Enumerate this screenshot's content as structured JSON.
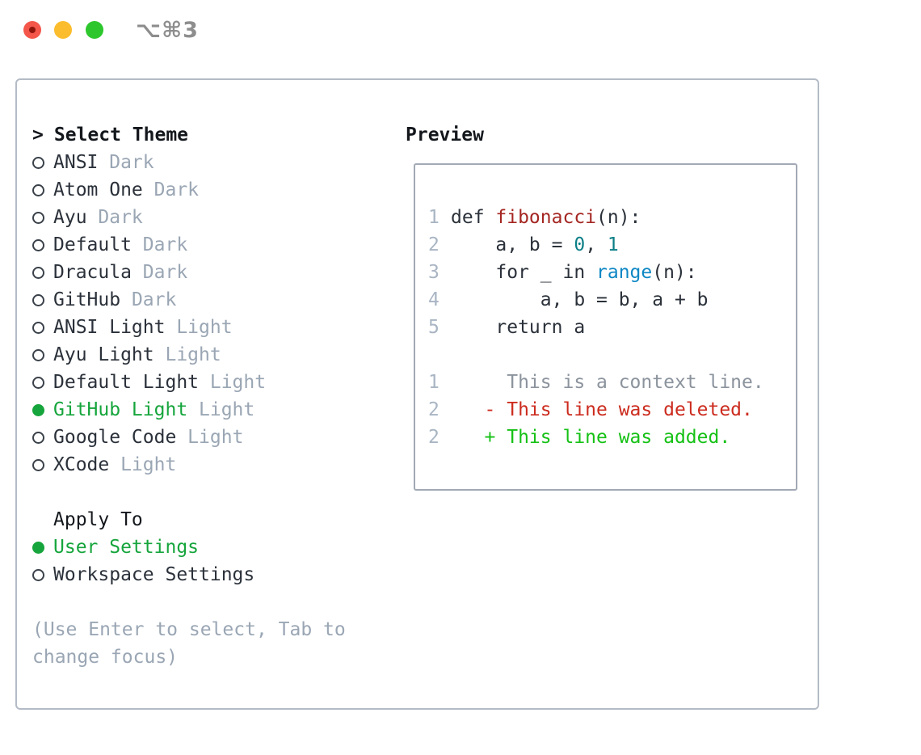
{
  "window": {
    "title_shortcut": "⌥⌘3",
    "traffic_lights": [
      "close",
      "minimize",
      "zoom"
    ]
  },
  "theme_picker": {
    "prompt": ">",
    "title": "Select Theme",
    "items": [
      {
        "name": "ANSI",
        "variant": "Dark",
        "selected": false
      },
      {
        "name": "Atom One",
        "variant": "Dark",
        "selected": false
      },
      {
        "name": "Ayu",
        "variant": "Dark",
        "selected": false
      },
      {
        "name": "Default",
        "variant": "Dark",
        "selected": false
      },
      {
        "name": "Dracula",
        "variant": "Dark",
        "selected": false
      },
      {
        "name": "GitHub",
        "variant": "Dark",
        "selected": false
      },
      {
        "name": "ANSI Light",
        "variant": "Light",
        "selected": false
      },
      {
        "name": "Ayu Light",
        "variant": "Light",
        "selected": false
      },
      {
        "name": "Default Light",
        "variant": "Light",
        "selected": false
      },
      {
        "name": "GitHub Light",
        "variant": "Light",
        "selected": true
      },
      {
        "name": "Google Code",
        "variant": "Light",
        "selected": false
      },
      {
        "name": "XCode",
        "variant": "Light",
        "selected": false
      }
    ],
    "apply_to": {
      "title": "Apply To",
      "options": [
        {
          "label": "User Settings",
          "selected": true
        },
        {
          "label": "Workspace Settings",
          "selected": false
        }
      ]
    },
    "hint_line1": "(Use Enter to select, Tab to",
    "hint_line2": "change focus)"
  },
  "preview": {
    "title": "Preview",
    "code": {
      "lines": [
        {
          "num": "1",
          "tokens": [
            {
              "text": "def ",
              "style": "plain"
            },
            {
              "text": "fibonacci",
              "style": "function"
            },
            {
              "text": "(n):",
              "style": "plain"
            }
          ]
        },
        {
          "num": "2",
          "tokens": [
            {
              "text": "    a, b = ",
              "style": "plain"
            },
            {
              "text": "0",
              "style": "number"
            },
            {
              "text": ", ",
              "style": "plain"
            },
            {
              "text": "1",
              "style": "number"
            }
          ]
        },
        {
          "num": "3",
          "tokens": [
            {
              "text": "    for _ in ",
              "style": "plain"
            },
            {
              "text": "range",
              "style": "builtin"
            },
            {
              "text": "(n):",
              "style": "plain"
            }
          ]
        },
        {
          "num": "4",
          "tokens": [
            {
              "text": "        a, b = b, a + b",
              "style": "plain"
            }
          ]
        },
        {
          "num": "5",
          "tokens": [
            {
              "text": "    return a",
              "style": "plain"
            }
          ]
        },
        {
          "num": "",
          "tokens": []
        },
        {
          "num": "1",
          "tokens": [
            {
              "text": "     This is a context line.",
              "style": "context"
            }
          ]
        },
        {
          "num": "2",
          "tokens": [
            {
              "text": "   - This line was deleted.",
              "style": "deleted"
            }
          ]
        },
        {
          "num": "2",
          "tokens": [
            {
              "text": "   + This line was added.",
              "style": "added"
            }
          ]
        }
      ]
    }
  },
  "colors": {
    "text": "#2b313a",
    "heading": "#14181d",
    "muted": "#9aa6b4",
    "accent_green": "#16a53c",
    "diff_added": "#15c115",
    "diff_deleted": "#cc2c1f",
    "func_red": "#a42622",
    "number_teal": "#0c7f87",
    "builtin_blue": "#0d87c4",
    "line_number": "#a9b5c3",
    "context_gray": "#8b939d",
    "panel_border": "#b4bbc6",
    "preview_border": "#a2a9b4",
    "title_gray": "#8d8d8d",
    "traffic_red": "#f4564a",
    "traffic_red_dot": "#8f150c",
    "traffic_yellow": "#fbbd2d",
    "traffic_green": "#2dc72d"
  }
}
